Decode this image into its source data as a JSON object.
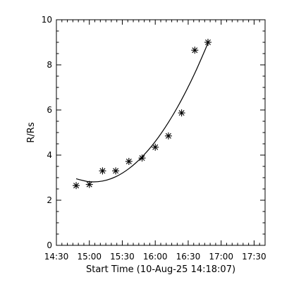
{
  "chart_data": {
    "type": "scatter",
    "title": "",
    "xlabel": "Start Time (10-Aug-25 14:18:07)",
    "ylabel": "R/Rs",
    "xlim": [
      "14:30",
      "17:40"
    ],
    "ylim": [
      0,
      10
    ],
    "grid": false,
    "legend": "none",
    "x_ticks": [
      "14:30",
      "15:00",
      "15:30",
      "16:00",
      "16:30",
      "17:00",
      "17:30"
    ],
    "y_ticks": [
      "0",
      "2",
      "4",
      "6",
      "8",
      "10"
    ],
    "series": [
      {
        "marker": "asterisk",
        "points": [
          {
            "x": "14:48",
            "y": 2.65
          },
          {
            "x": "15:00",
            "y": 2.7
          },
          {
            "x": "15:12",
            "y": 3.3
          },
          {
            "x": "15:24",
            "y": 3.3
          },
          {
            "x": "15:36",
            "y": 3.72
          },
          {
            "x": "15:48",
            "y": 3.87
          },
          {
            "x": "16:00",
            "y": 4.35
          },
          {
            "x": "16:12",
            "y": 4.85
          },
          {
            "x": "16:24",
            "y": 5.87
          },
          {
            "x": "16:36",
            "y": 8.65
          },
          {
            "x": "16:48",
            "y": 9.0
          }
        ]
      }
    ],
    "fit_curve": {
      "style": "solid",
      "points": [
        {
          "x": "14:48",
          "y": 2.95
        },
        {
          "x": "15:00",
          "y": 2.82
        },
        {
          "x": "15:12",
          "y": 2.85
        },
        {
          "x": "15:24",
          "y": 3.04
        },
        {
          "x": "15:36",
          "y": 3.4
        },
        {
          "x": "15:48",
          "y": 3.92
        },
        {
          "x": "16:00",
          "y": 4.6
        },
        {
          "x": "16:12",
          "y": 5.45
        },
        {
          "x": "16:24",
          "y": 6.46
        },
        {
          "x": "16:36",
          "y": 7.63
        },
        {
          "x": "16:48",
          "y": 8.96
        }
      ]
    }
  }
}
